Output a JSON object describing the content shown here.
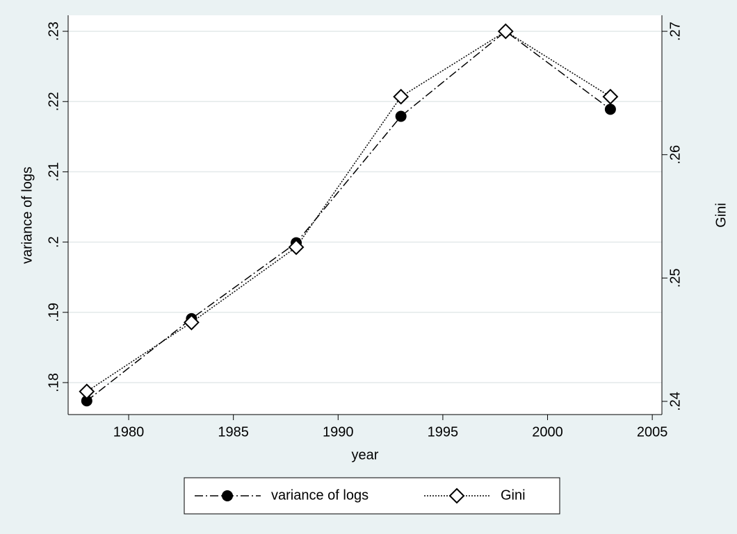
{
  "chart_data": {
    "type": "line",
    "x": [
      1978,
      1983,
      1988,
      1993,
      1998,
      2003
    ],
    "series": [
      {
        "name": "variance of logs",
        "color": "#000000",
        "values": [
          0.1774,
          0.1891,
          0.1999,
          0.2179,
          0.23,
          0.2189
        ]
      },
      {
        "name": "Gini",
        "color": "#000000",
        "axis": "y2",
        "values": [
          0.2408,
          0.2464,
          0.2525,
          0.2647,
          0.27,
          0.2647
        ]
      }
    ],
    "xlabel": "year",
    "ylabel": "variance of logs",
    "y2label": "Gini",
    "xlim": [
      1977.11,
      2005.46
    ],
    "xticks": [
      1980,
      1985,
      1990,
      1995,
      2000,
      2005
    ],
    "ylim": [
      0.17545,
      0.23228
    ],
    "yticks": [
      {
        "value": 0.18,
        "label": ".18"
      },
      {
        "value": 0.19,
        "label": ".19"
      },
      {
        "value": 0.2,
        "label": ".2"
      },
      {
        "value": 0.21,
        "label": ".21"
      },
      {
        "value": 0.22,
        "label": ".22"
      },
      {
        "value": 0.23,
        "label": ".23"
      }
    ],
    "y2lim": [
      0.23893,
      0.2713
    ],
    "y2ticks": [
      {
        "value": 0.24,
        "label": ".24"
      },
      {
        "value": 0.25,
        "label": ".25"
      },
      {
        "value": 0.26,
        "label": ".26"
      },
      {
        "value": 0.27,
        "label": ".27"
      }
    ],
    "grid": true,
    "legend": "bottom"
  }
}
